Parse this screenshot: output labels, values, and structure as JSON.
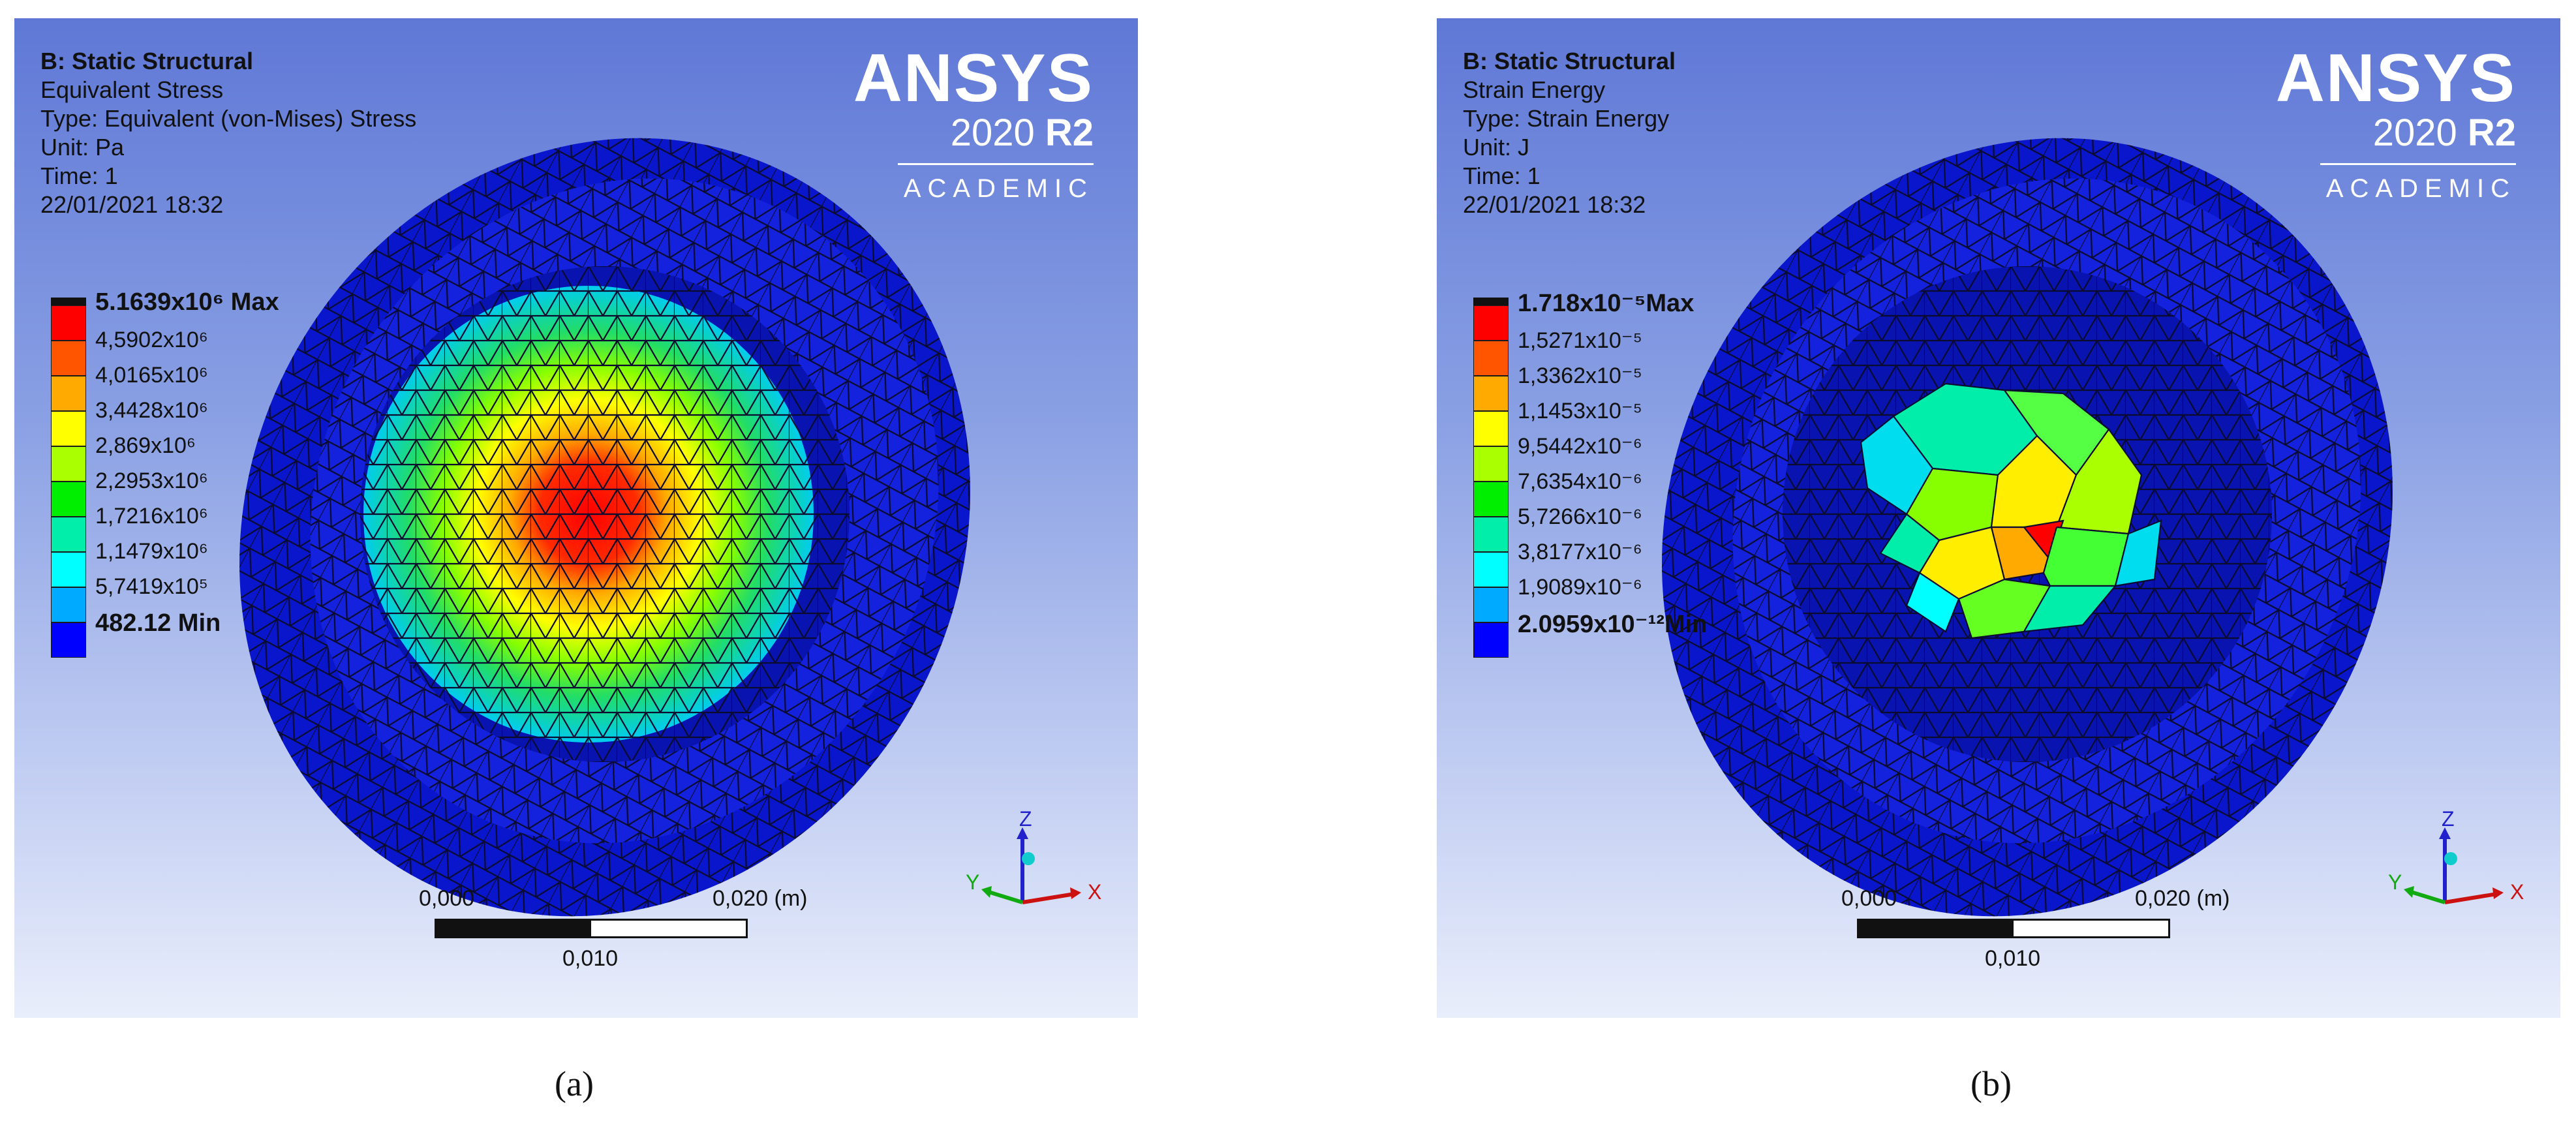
{
  "panels": [
    {
      "title": "B: Static Structural",
      "result": "Equivalent Stress",
      "type": "Type: Equivalent (von-Mises) Stress",
      "unit": "Unit: Pa",
      "time": "Time: 1",
      "date": "22/01/2021 18:32",
      "legend": [
        {
          "label": "5.1639x10⁶ Max",
          "color": "#ff0000",
          "bold": true
        },
        {
          "label": "4,5902x10⁶",
          "color": "#ff5500",
          "bold": false
        },
        {
          "label": "4,0165x10⁶",
          "color": "#ffaa00",
          "bold": false
        },
        {
          "label": "3,4428x10⁶",
          "color": "#ffff00",
          "bold": false
        },
        {
          "label": "2,869x10⁶",
          "color": "#aaff00",
          "bold": false
        },
        {
          "label": "2,2953x10⁶",
          "color": "#00ee00",
          "bold": false
        },
        {
          "label": "1,7216x10⁶",
          "color": "#00eeaa",
          "bold": false
        },
        {
          "label": "1,1479x10⁶",
          "color": "#00ffff",
          "bold": false
        },
        {
          "label": "5,7419x10⁵",
          "color": "#00aaff",
          "bold": false
        },
        {
          "label": "482.12 Min",
          "color": "#0000ff",
          "bold": true
        }
      ],
      "caption": "(a)"
    },
    {
      "title": "B: Static Structural",
      "result": "Strain Energy",
      "type": "Type: Strain Energy",
      "unit": "Unit: J",
      "time": "Time: 1",
      "date": "22/01/2021 18:32",
      "legend": [
        {
          "label": "1.718x10⁻⁵Max",
          "color": "#ff0000",
          "bold": true
        },
        {
          "label": "1,5271x10⁻⁵",
          "color": "#ff5500",
          "bold": false
        },
        {
          "label": "1,3362x10⁻⁵",
          "color": "#ffaa00",
          "bold": false
        },
        {
          "label": "1,1453x10⁻⁵",
          "color": "#ffff00",
          "bold": false
        },
        {
          "label": "9,5442x10⁻⁶",
          "color": "#aaff00",
          "bold": false
        },
        {
          "label": "7,6354x10⁻⁶",
          "color": "#00ee00",
          "bold": false
        },
        {
          "label": "5,7266x10⁻⁶",
          "color": "#00eeaa",
          "bold": false
        },
        {
          "label": "3,8177x10⁻⁶",
          "color": "#00ffff",
          "bold": false
        },
        {
          "label": "1,9089x10⁻⁶",
          "color": "#00aaff",
          "bold": false
        },
        {
          "label": "2.0959x10⁻¹²Min",
          "color": "#0000ff",
          "bold": true
        }
      ],
      "caption": "(b)"
    }
  ],
  "brand": {
    "name": "ANSYS",
    "version": "2020",
    "release": "R2",
    "edition": "ACADEMIC"
  },
  "scale_bar": {
    "start": "0,000",
    "end": "0,020 (m)",
    "mid": "0,010"
  },
  "triad": {
    "x": "X",
    "y": "Y",
    "z": "Z"
  },
  "colors": {
    "mesh_blue": "#0a16cc",
    "edge": "#0a0a2a"
  }
}
